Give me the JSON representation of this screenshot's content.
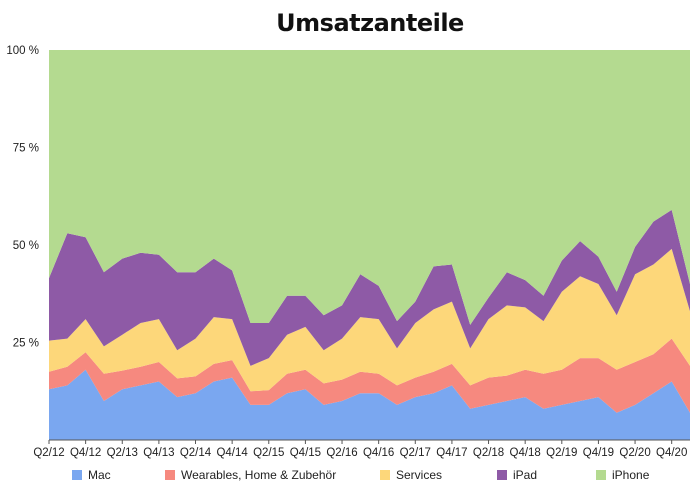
{
  "chart_data": {
    "type": "area",
    "stacked": true,
    "normalized": true,
    "title": "Umsatzanteile",
    "xlabel": "",
    "ylabel": "",
    "ylim": [
      0,
      100
    ],
    "ytick_labels": [
      "100 %",
      "75 %",
      "50 %",
      "25 %"
    ],
    "ytick_values": [
      100,
      75,
      50,
      25
    ],
    "grid": false,
    "legend_position": "bottom",
    "x": [
      "Q2/12",
      "Q3/12",
      "Q4/12",
      "Q1/13",
      "Q2/13",
      "Q3/13",
      "Q4/13",
      "Q1/14",
      "Q2/14",
      "Q3/14",
      "Q4/14",
      "Q1/15",
      "Q2/15",
      "Q3/15",
      "Q4/15",
      "Q1/16",
      "Q2/16",
      "Q3/16",
      "Q4/16",
      "Q1/17",
      "Q2/17",
      "Q3/17",
      "Q4/17",
      "Q1/18",
      "Q2/18",
      "Q3/18",
      "Q4/18",
      "Q1/19",
      "Q2/19",
      "Q3/19",
      "Q4/19",
      "Q1/20",
      "Q2/20",
      "Q3/20",
      "Q4/20",
      "Q1/21"
    ],
    "xtick_labels": [
      "Q2/12",
      "Q4/12",
      "Q2/13",
      "Q4/13",
      "Q2/14",
      "Q4/14",
      "Q2/15",
      "Q4/15",
      "Q2/16",
      "Q4/16",
      "Q2/17",
      "Q4/17",
      "Q2/18",
      "Q4/18",
      "Q2/19",
      "Q4/19",
      "Q2/20",
      "Q4/20"
    ],
    "series": [
      {
        "name": "Mac",
        "color": "#7aa7f0",
        "values": [
          13,
          14,
          18,
          10,
          13,
          14,
          15,
          11,
          12,
          15,
          16,
          9,
          9,
          12,
          13,
          9,
          10,
          12,
          12,
          9,
          11,
          12,
          14,
          8,
          9,
          10,
          11,
          8,
          9,
          10,
          11,
          7,
          9,
          12,
          15,
          7
        ]
      },
      {
        "name": "Wearables, Home & Zubehör",
        "color": "#f6897f",
        "values": [
          4.5,
          4.8,
          4.5,
          7,
          4.8,
          4.8,
          5,
          4.8,
          4.3,
          4.5,
          4.5,
          3.5,
          3.8,
          5,
          5,
          5.5,
          5.5,
          5.5,
          5,
          5,
          5,
          5.5,
          5.5,
          6,
          7,
          6.5,
          7,
          9,
          9,
          11,
          10,
          11,
          11,
          10,
          11,
          12
        ]
      },
      {
        "name": "Services",
        "color": "#fdd77a",
        "values": [
          8,
          7.2,
          8.5,
          7,
          9.2,
          11.2,
          11,
          7.2,
          9.7,
          12,
          10.5,
          6.5,
          8.2,
          10,
          11,
          8.5,
          10.5,
          14,
          14,
          9.5,
          14,
          16,
          16,
          9.5,
          15,
          18,
          16,
          13.5,
          20,
          21,
          19,
          14,
          22.5,
          23,
          23,
          14
        ]
      },
      {
        "name": "iPad",
        "color": "#8e5aa6",
        "values": [
          16,
          27,
          21,
          19,
          19.5,
          18,
          16.5,
          20,
          17,
          15,
          12.5,
          11,
          9,
          10,
          8,
          9,
          8.5,
          11,
          8.5,
          7,
          5.5,
          11,
          9.5,
          6,
          5.5,
          8.5,
          7,
          6.5,
          8,
          9,
          7,
          6,
          7,
          11,
          10,
          7
        ]
      },
      {
        "name": "iPhone",
        "color": "#b4da90",
        "values": [
          58.5,
          47,
          48,
          57,
          53.5,
          52,
          52.5,
          57,
          57,
          53.5,
          56.5,
          70,
          70,
          63,
          63,
          68,
          65.5,
          57.5,
          60.5,
          69.5,
          64.5,
          55.5,
          55,
          70.5,
          63.5,
          57,
          59,
          63,
          54,
          49,
          53,
          62,
          50.5,
          44,
          41,
          60
        ]
      }
    ]
  }
}
